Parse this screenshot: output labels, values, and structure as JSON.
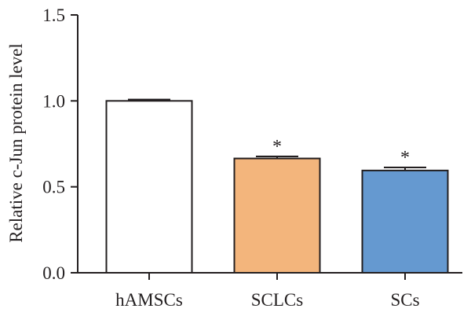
{
  "chart_data": {
    "type": "bar",
    "title": "",
    "xlabel": "",
    "ylabel": "Relative c-Jun protein level",
    "ylim": [
      0,
      1.5
    ],
    "yticks": [
      0.0,
      0.5,
      1.0,
      1.5
    ],
    "ytick_labels": [
      "0.0",
      "0.5",
      "1.0",
      "1.5"
    ],
    "categories": [
      "hAMSCs",
      "SCLCs",
      "SCs"
    ],
    "values": [
      1.0,
      0.665,
      0.595
    ],
    "errors": [
      0.008,
      0.012,
      0.018
    ],
    "significance": [
      "",
      "*",
      "*"
    ],
    "colors": [
      "#ffffff",
      "#f3b57c",
      "#6599d0"
    ],
    "edge_color": "#231f20",
    "grid": false
  }
}
